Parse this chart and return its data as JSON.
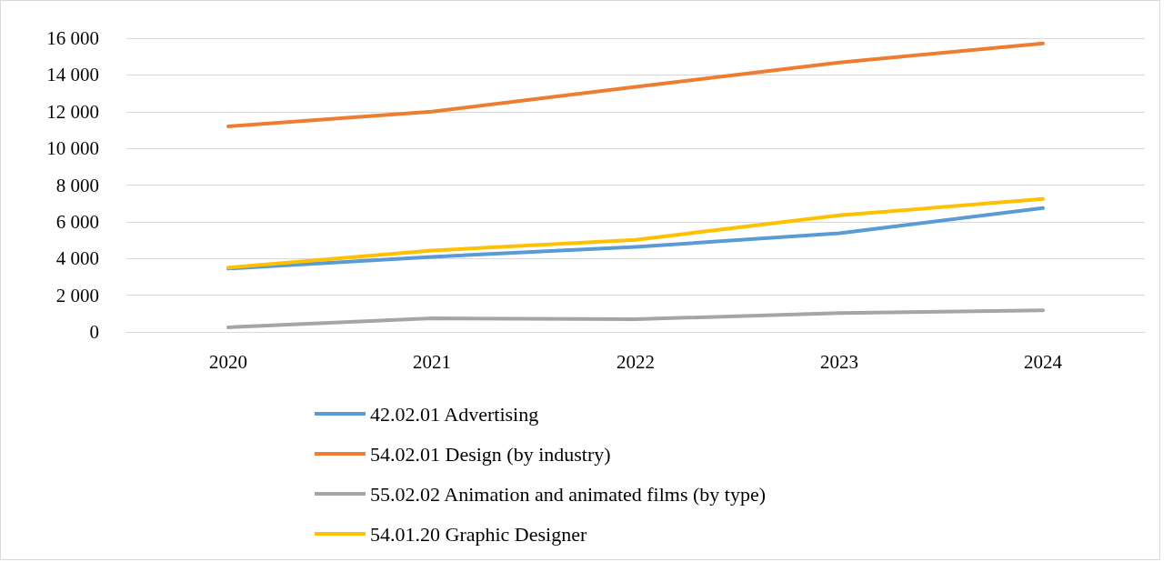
{
  "chart_data": {
    "type": "line",
    "categories": [
      "2020",
      "2021",
      "2022",
      "2023",
      "2024"
    ],
    "series": [
      {
        "name": "42.02.01 Advertising",
        "color": "#5b9bd5",
        "values": [
          3450,
          4090,
          4630,
          5370,
          6750
        ]
      },
      {
        "name": "54.02.01 Design (by industry)",
        "color": "#ed7d31",
        "values": [
          11200,
          12000,
          13350,
          14680,
          15710
        ]
      },
      {
        "name": "55.02.02 Animation and animated films (by type)",
        "color": "#a5a5a5",
        "values": [
          250,
          740,
          690,
          1030,
          1180
        ]
      },
      {
        "name": "54.01.20 Graphic Designer",
        "color": "#ffc000",
        "values": [
          3500,
          4430,
          5020,
          6350,
          7240
        ]
      }
    ],
    "ylim": [
      0,
      16000
    ],
    "yticks": [
      {
        "value": 0,
        "label": "0"
      },
      {
        "value": 2000,
        "label": "2 000"
      },
      {
        "value": 4000,
        "label": "4 000"
      },
      {
        "value": 6000,
        "label": "6 000"
      },
      {
        "value": 8000,
        "label": "8 000"
      },
      {
        "value": 10000,
        "label": "10 000"
      },
      {
        "value": 12000,
        "label": "12 000"
      },
      {
        "value": 14000,
        "label": "14 000"
      },
      {
        "value": 16000,
        "label": "16 000"
      }
    ],
    "grid": "y",
    "legend": "bottom",
    "marker": "none",
    "line_style": "solid"
  }
}
